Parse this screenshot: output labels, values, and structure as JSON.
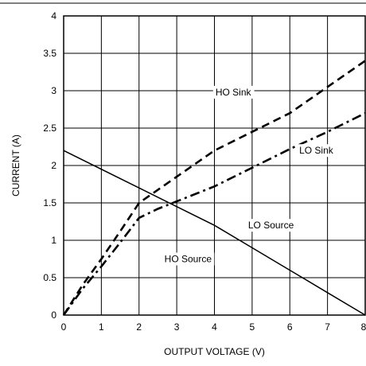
{
  "chart_data": {
    "type": "line",
    "title": "",
    "xlabel": "OUTPUT VOLTAGE (V)",
    "ylabel": "CURRENT (A)",
    "xlim": [
      0,
      8
    ],
    "ylim": [
      0,
      4
    ],
    "xticks": [
      0,
      1,
      2,
      3,
      4,
      5,
      6,
      7,
      8
    ],
    "yticks": [
      0,
      0.5,
      1,
      1.5,
      2,
      2.5,
      3,
      3.5,
      4
    ],
    "xtick_labels": [
      "0",
      "1",
      "2",
      "3",
      "4",
      "5",
      "6",
      "7",
      "8"
    ],
    "ytick_labels": [
      "0",
      "0.5",
      "1",
      "1.5",
      "2",
      "2.5",
      "3",
      "3.5",
      "4"
    ],
    "grid": true,
    "legend": "none",
    "series": [
      {
        "name": "HO Sink",
        "style": "dashed",
        "x": [
          0,
          0.5,
          1,
          1.5,
          2,
          3,
          4,
          5,
          6,
          7,
          8
        ],
        "y": [
          0,
          0.4,
          0.75,
          1.12,
          1.5,
          1.85,
          2.2,
          2.45,
          2.7,
          3.05,
          3.4
        ]
      },
      {
        "name": "LO Sink",
        "style": "dashdot",
        "x": [
          0,
          0.5,
          1,
          1.5,
          2,
          2.5,
          3,
          4,
          5,
          6,
          7,
          8
        ],
        "y": [
          0,
          0.35,
          0.65,
          0.97,
          1.3,
          1.42,
          1.52,
          1.72,
          1.97,
          2.22,
          2.45,
          2.7
        ]
      },
      {
        "name": "HO Source",
        "style": "solid",
        "x": [
          0,
          2,
          3,
          4,
          5,
          6,
          7,
          8
        ],
        "y": [
          2.2,
          1.7,
          1.45,
          1.2,
          0.9,
          0.6,
          0.3,
          0
        ]
      }
    ],
    "annotations": [
      {
        "text": "HO Sink",
        "x": 4.5,
        "y": 2.98
      },
      {
        "text": "LO Sink",
        "x": 6.7,
        "y": 2.2
      },
      {
        "text": "LO Source",
        "x": 5.5,
        "y": 1.2
      },
      {
        "text": "HO Source",
        "x": 3.3,
        "y": 0.75
      }
    ],
    "colors": {
      "line": "#000000",
      "grid": "#000000",
      "background": "#ffffff"
    }
  }
}
